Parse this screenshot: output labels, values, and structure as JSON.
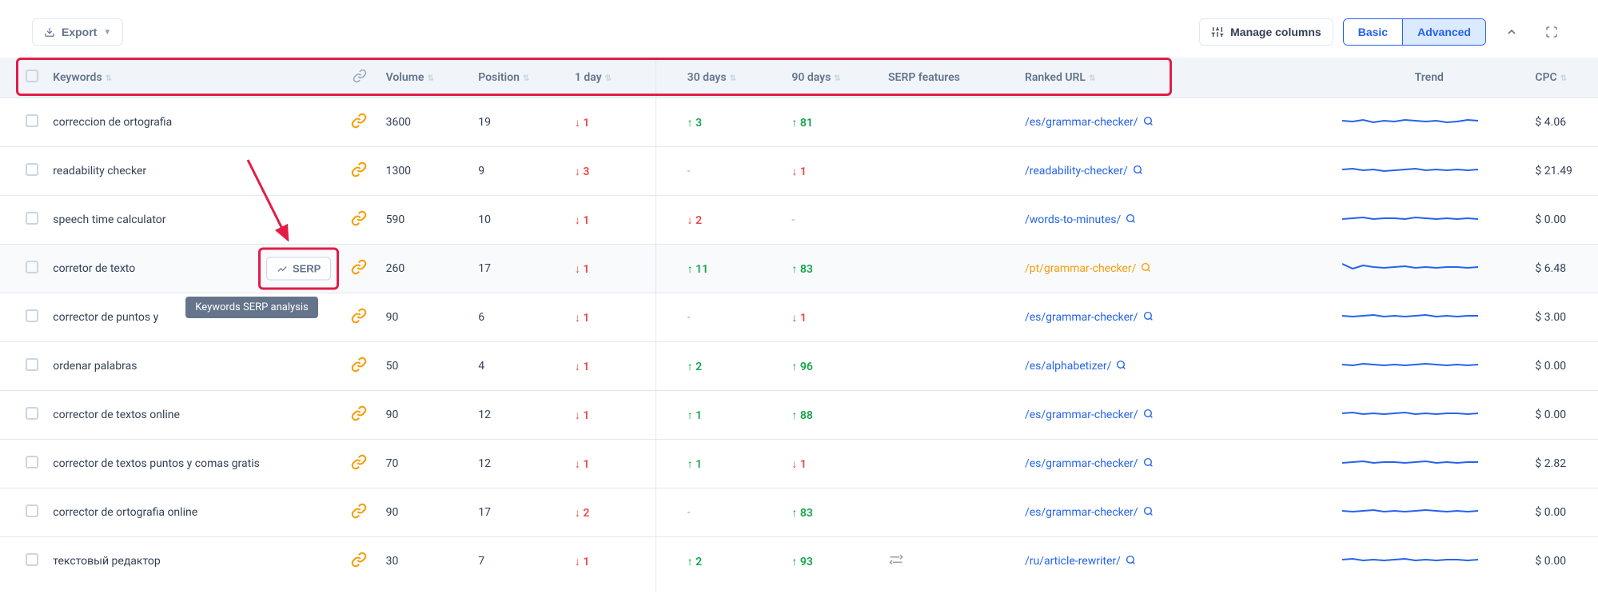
{
  "toolbar": {
    "export_label": "Export",
    "manage_columns_label": "Manage columns",
    "basic_label": "Basic",
    "advanced_label": "Advanced"
  },
  "columns": {
    "keywords": "Keywords",
    "volume": "Volume",
    "position": "Position",
    "day1": "1 day",
    "day30": "30 days",
    "day90": "90 days",
    "serp_features": "SERP features",
    "ranked_url": "Ranked URL",
    "trend": "Trend",
    "cpc": "CPC"
  },
  "serp_button_label": "SERP",
  "tooltip_text": "Keywords SERP analysis",
  "colors": {
    "blue": "#2563eb",
    "green": "#16a34a",
    "red": "#ef4444",
    "orange": "#f59e0b",
    "slate": "#64748b",
    "border": "#e2e8f0",
    "highlight_red": "#e11d48",
    "row_hover": "#f8fafc"
  },
  "trend_line": {
    "stroke": "#2563eb",
    "stroke_width": 2
  },
  "rows": [
    {
      "keyword": "correccion de ortografia",
      "volume": "3600",
      "position": "19",
      "d1": {
        "dir": "down",
        "val": "1"
      },
      "d30": {
        "dir": "up",
        "val": "3"
      },
      "d90": {
        "dir": "up",
        "val": "81"
      },
      "url": "/es/grammar-checker/",
      "url_color": "blue",
      "cpc": "$ 4.06",
      "trend": [
        14,
        15,
        13,
        16,
        14,
        15,
        13,
        14,
        15,
        14,
        16,
        15,
        13,
        14
      ]
    },
    {
      "keyword": "readability checker",
      "volume": "1300",
      "position": "9",
      "d1": {
        "dir": "down",
        "val": "3"
      },
      "d30": {
        "dir": "dash"
      },
      "d90": {
        "dir": "down",
        "val": "1"
      },
      "url": "/readability-checker/",
      "url_color": "blue",
      "cpc": "$ 21.49",
      "trend": [
        14,
        13,
        15,
        14,
        16,
        15,
        14,
        13,
        15,
        14,
        15,
        14,
        15,
        14
      ]
    },
    {
      "keyword": "speech time calculator",
      "volume": "590",
      "position": "10",
      "d1": {
        "dir": "down",
        "val": "1"
      },
      "d30": {
        "dir": "down",
        "val": "2"
      },
      "d90": {
        "dir": "dash"
      },
      "url": "/words-to-minutes/",
      "url_color": "blue",
      "cpc": "$ 0.00",
      "trend": [
        15,
        14,
        13,
        15,
        14,
        14,
        15,
        13,
        14,
        15,
        14,
        15,
        14,
        15
      ]
    },
    {
      "keyword": "corretor de texto",
      "volume": "260",
      "position": "17",
      "d1": {
        "dir": "down",
        "val": "1"
      },
      "d30": {
        "dir": "up",
        "val": "11"
      },
      "d90": {
        "dir": "up",
        "val": "83"
      },
      "url": "/pt/grammar-checker/",
      "url_color": "orange",
      "cpc": "$ 6.48",
      "highlighted": true,
      "show_serp": true,
      "trend": [
        10,
        16,
        12,
        14,
        15,
        14,
        13,
        15,
        14,
        15,
        14,
        14,
        15,
        14
      ]
    },
    {
      "keyword": "corrector de puntos y",
      "volume": "90",
      "position": "6",
      "d1": {
        "dir": "down",
        "val": "1"
      },
      "d30": {
        "dir": "dash"
      },
      "d90": {
        "dir": "down",
        "val": "1"
      },
      "url": "/es/grammar-checker/",
      "url_color": "blue",
      "cpc": "$ 3.00",
      "show_tooltip": true,
      "trend": [
        14,
        15,
        14,
        13,
        15,
        14,
        15,
        14,
        13,
        15,
        14,
        15,
        14,
        14
      ]
    },
    {
      "keyword": "ordenar palabras",
      "volume": "50",
      "position": "4",
      "d1": {
        "dir": "down",
        "val": "1"
      },
      "d30": {
        "dir": "up",
        "val": "2"
      },
      "d90": {
        "dir": "up",
        "val": "96"
      },
      "url": "/es/alphabetizer/",
      "url_color": "blue",
      "cpc": "$ 0.00",
      "trend": [
        14,
        15,
        13,
        14,
        15,
        14,
        15,
        14,
        13,
        14,
        15,
        14,
        15,
        14
      ]
    },
    {
      "keyword": "corrector de textos online",
      "volume": "90",
      "position": "12",
      "d1": {
        "dir": "down",
        "val": "1"
      },
      "d30": {
        "dir": "up",
        "val": "1"
      },
      "d90": {
        "dir": "up",
        "val": "88"
      },
      "url": "/es/grammar-checker/",
      "url_color": "blue",
      "cpc": "$ 0.00",
      "trend": [
        14,
        13,
        15,
        14,
        15,
        14,
        13,
        15,
        14,
        15,
        14,
        14,
        15,
        14
      ]
    },
    {
      "keyword": "corrector de textos puntos y comas gratis",
      "volume": "70",
      "position": "12",
      "d1": {
        "dir": "down",
        "val": "1"
      },
      "d30": {
        "dir": "up",
        "val": "1"
      },
      "d90": {
        "dir": "down",
        "val": "1"
      },
      "url": "/es/grammar-checker/",
      "url_color": "blue",
      "cpc": "$ 2.82",
      "trend": [
        15,
        14,
        13,
        15,
        14,
        14,
        15,
        14,
        13,
        15,
        14,
        15,
        14,
        14
      ]
    },
    {
      "keyword": "corrector de ortografia online",
      "volume": "90",
      "position": "17",
      "d1": {
        "dir": "down",
        "val": "2"
      },
      "d30": {
        "dir": "dash"
      },
      "d90": {
        "dir": "up",
        "val": "83"
      },
      "url": "/es/grammar-checker/",
      "url_color": "blue",
      "cpc": "$ 0.00",
      "trend": [
        14,
        15,
        14,
        13,
        15,
        14,
        15,
        14,
        13,
        14,
        15,
        14,
        15,
        14
      ]
    },
    {
      "keyword": "текстовый редактор",
      "volume": "30",
      "position": "7",
      "d1": {
        "dir": "down",
        "val": "1"
      },
      "d30": {
        "dir": "up",
        "val": "2"
      },
      "d90": {
        "dir": "up",
        "val": "93"
      },
      "url": "/ru/article-rewriter/",
      "url_color": "blue",
      "cpc": "$ 0.00",
      "serp_feat": true,
      "trend": [
        14,
        13,
        15,
        14,
        15,
        14,
        13,
        15,
        14,
        15,
        14,
        14,
        15,
        14
      ]
    }
  ]
}
